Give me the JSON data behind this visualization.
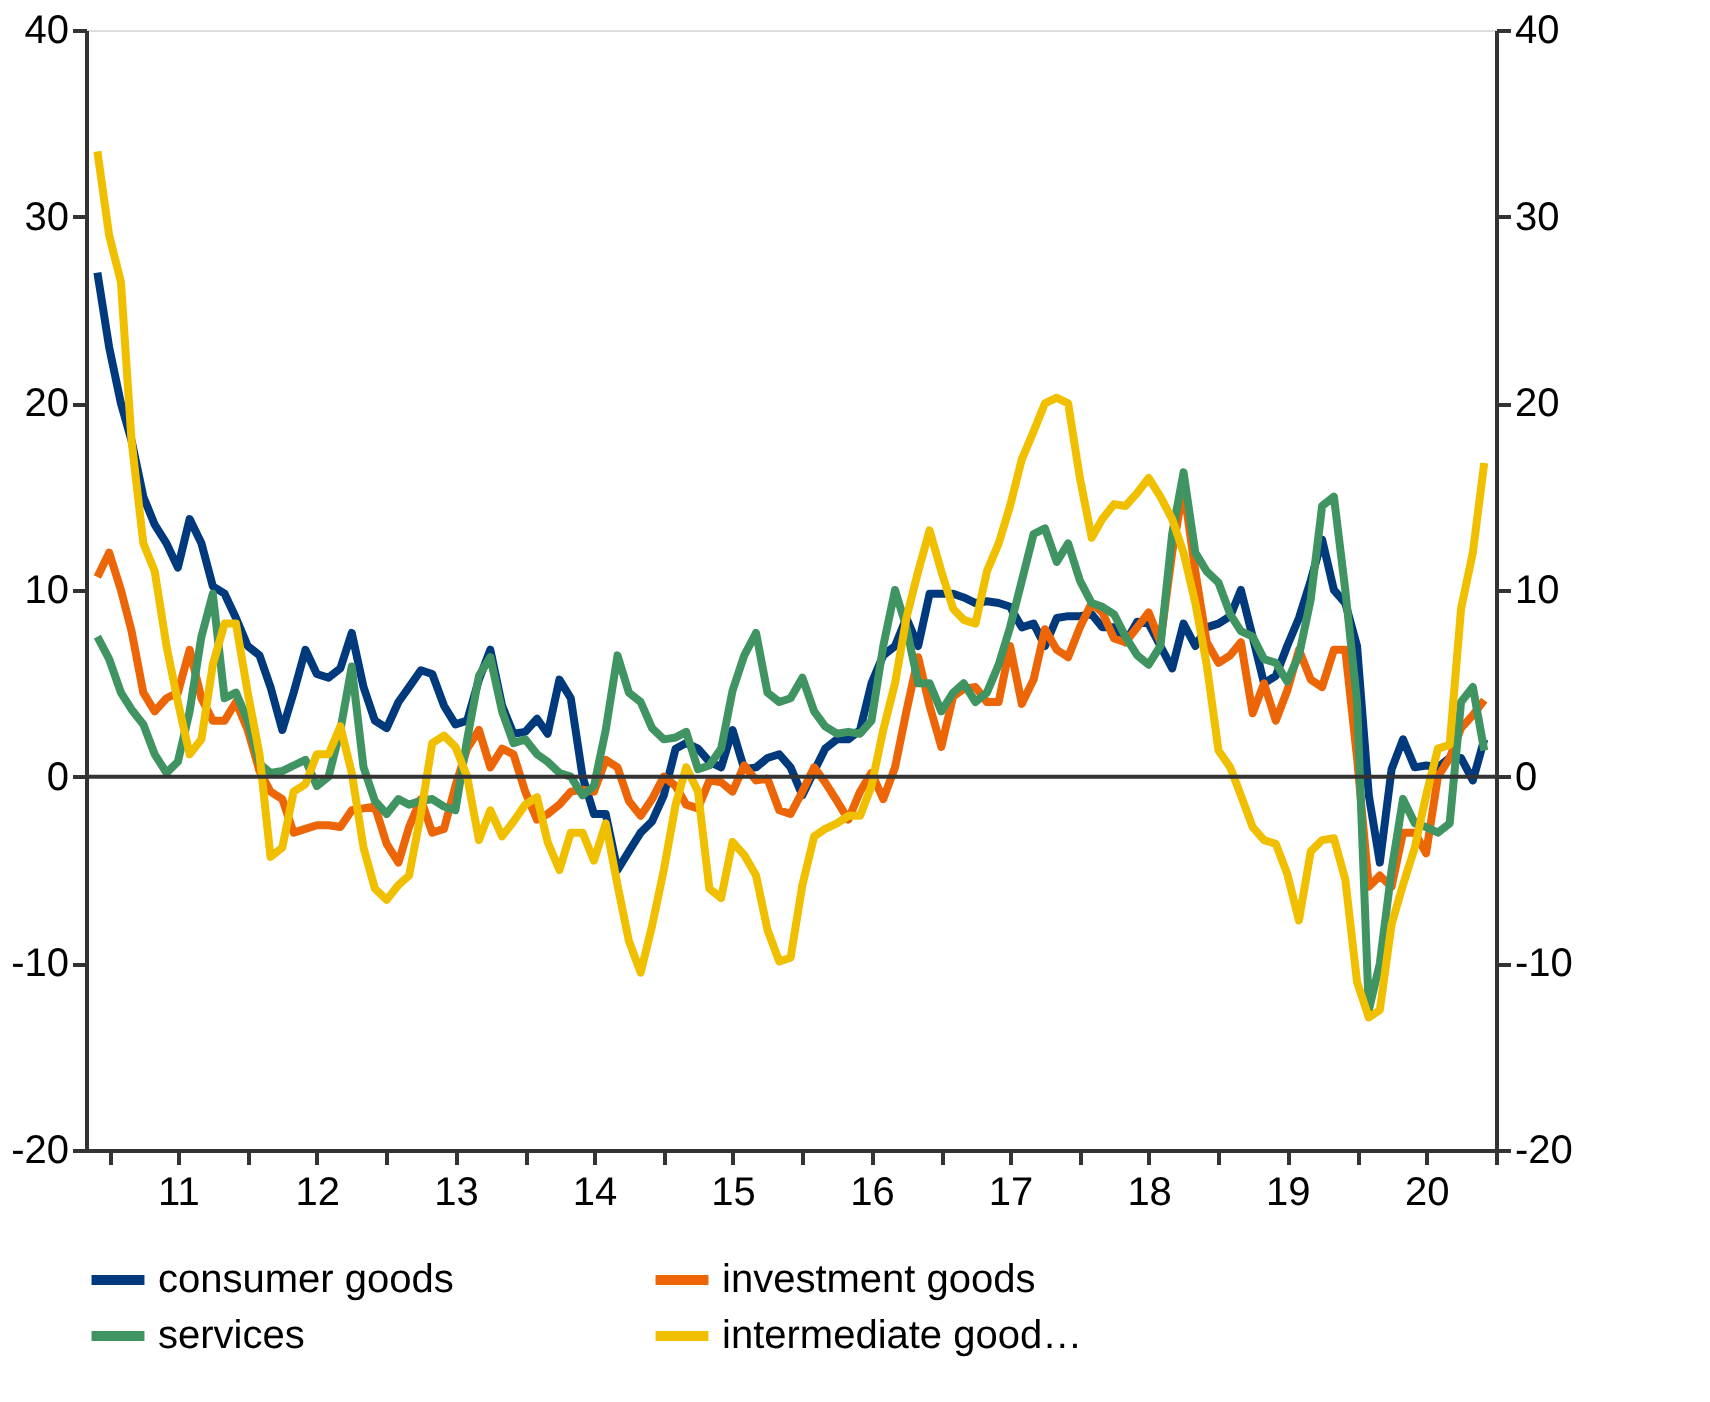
{
  "chart_data": {
    "type": "line",
    "x": [
      "2010-12",
      "2011-01",
      "2011-02",
      "2011-03",
      "2011-04",
      "2011-05",
      "2011-06",
      "2011-07",
      "2011-08",
      "2011-09",
      "2011-10",
      "2011-11",
      "2011-12",
      "2012-01",
      "2012-02",
      "2012-03",
      "2012-04",
      "2012-05",
      "2012-06",
      "2012-07",
      "2012-08",
      "2012-09",
      "2012-10",
      "2012-11",
      "2012-12",
      "2013-01",
      "2013-02",
      "2013-03",
      "2013-04",
      "2013-05",
      "2013-06",
      "2013-07",
      "2013-08",
      "2013-09",
      "2013-10",
      "2013-11",
      "2013-12",
      "2014-01",
      "2014-02",
      "2014-03",
      "2014-04",
      "2014-05",
      "2014-06",
      "2014-07",
      "2014-08",
      "2014-09",
      "2014-10",
      "2014-11",
      "2014-12",
      "2015-01",
      "2015-02",
      "2015-03",
      "2015-04",
      "2015-05",
      "2015-06",
      "2015-07",
      "2015-08",
      "2015-09",
      "2015-10",
      "2015-11",
      "2015-12",
      "2016-01",
      "2016-02",
      "2016-03",
      "2016-04",
      "2016-05",
      "2016-06",
      "2016-07",
      "2016-08",
      "2016-09",
      "2016-10",
      "2016-11",
      "2016-12",
      "2017-01",
      "2017-02",
      "2017-03",
      "2017-04",
      "2017-05",
      "2017-06",
      "2017-07",
      "2017-08",
      "2017-09",
      "2017-10",
      "2017-11",
      "2017-12",
      "2018-01",
      "2018-02",
      "2018-03",
      "2018-04",
      "2018-05",
      "2018-06",
      "2018-07",
      "2018-08",
      "2018-09",
      "2018-10",
      "2018-11",
      "2018-12",
      "2019-01",
      "2019-02",
      "2019-03",
      "2019-04",
      "2019-05",
      "2019-06",
      "2019-07",
      "2019-08",
      "2019-09",
      "2019-10",
      "2019-11",
      "2019-12",
      "2020-01",
      "2020-02",
      "2020-03",
      "2020-04",
      "2020-05",
      "2020-06",
      "2020-07",
      "2020-08",
      "2020-09",
      "2020-10",
      "2020-11",
      "2020-12"
    ],
    "series": [
      {
        "name": "consumer goods",
        "color": "#003a7d",
        "values": [
          27,
          23,
          20,
          18,
          15,
          13.5,
          12.5,
          11.2,
          13.8,
          12.5,
          10.2,
          9.8,
          8.5,
          7,
          6.5,
          4.8,
          2.5,
          4.5,
          6.8,
          5.5,
          5.3,
          5.8,
          7.7,
          4.8,
          3,
          2.6,
          4,
          4.8,
          5.7,
          5.5,
          3.8,
          2.8,
          3,
          5.2,
          6.8,
          3.8,
          2.3,
          2.4,
          3.1,
          2.3,
          5.2,
          4.2,
          0,
          -2,
          -2,
          -5,
          -4,
          -3,
          -2.4,
          -1,
          1.5,
          1.8,
          1.5,
          0.8,
          0.5,
          2.5,
          0.4,
          0.5,
          1,
          1.2,
          0.5,
          -1,
          0.3,
          1.5,
          2,
          2,
          2.5,
          5,
          6.5,
          7,
          8.5,
          7,
          9.8,
          9.8,
          9.8,
          9.6,
          9.3,
          9.4,
          9.3,
          9.1,
          8,
          8.2,
          7,
          8.5,
          8.6,
          8.6,
          8.7,
          8,
          8,
          7.2,
          8.3,
          8.2,
          7,
          5.8,
          8.2,
          7,
          8,
          8.2,
          8.6,
          10,
          7.5,
          5,
          5.4,
          7,
          8.5,
          10.5,
          12.7,
          10,
          9.3,
          7,
          -1,
          -4.6,
          0.4,
          2,
          0.5,
          0.6,
          0.5,
          1,
          1,
          -0.2,
          2
        ]
      },
      {
        "name": "investment goods",
        "color": "#ec6608",
        "values": [
          10.7,
          12,
          10,
          7.8,
          4.5,
          3.5,
          4.2,
          4.5,
          6.8,
          4.2,
          3,
          3,
          4,
          2.5,
          0.3,
          -0.8,
          -1.2,
          -3,
          -2.8,
          -2.6,
          -2.6,
          -2.7,
          -1.8,
          -1.7,
          -1.6,
          -3.6,
          -4.6,
          -2.7,
          -1.2,
          -3,
          -2.8,
          -0.5,
          1.5,
          2.5,
          0.5,
          1.5,
          1.2,
          -0.8,
          -2.3,
          -2,
          -1.5,
          -0.8,
          -0.7,
          -0.8,
          0.9,
          0.5,
          -1.3,
          -2.1,
          -1.2,
          0,
          -0.5,
          -1.5,
          -1.7,
          -0.2,
          -0.3,
          -0.8,
          0.6,
          -0.2,
          -0.1,
          -1.8,
          -2,
          -0.8,
          0.5,
          -0.3,
          -1.3,
          -2.3,
          -0.8,
          0.2,
          -1.2,
          0.5,
          3.5,
          6.4,
          3.8,
          1.6,
          4.3,
          4.7,
          4.8,
          4,
          4,
          7,
          3.9,
          5.2,
          7.9,
          6.8,
          6.4,
          8,
          9.3,
          8.8,
          7.4,
          7.2,
          8,
          8.8,
          7.2,
          12,
          15.5,
          11,
          7.2,
          6.1,
          6.5,
          7.2,
          3.4,
          5,
          3,
          4.6,
          6.8,
          5.2,
          4.8,
          6.8,
          6.8,
          1,
          -5.9,
          -5.3,
          -5.9,
          -3,
          -3,
          -4.1,
          0,
          1,
          2.6,
          3.3,
          4.1
        ]
      },
      {
        "name": "services",
        "color": "#3f9461",
        "values": [
          7.5,
          6.3,
          4.5,
          3.6,
          2.8,
          1.2,
          0.2,
          0.8,
          3.5,
          7.5,
          9.8,
          4.2,
          4.5,
          3,
          0.7,
          0.2,
          0.3,
          0.6,
          0.9,
          -0.5,
          0,
          2.5,
          5.9,
          0.5,
          -1.3,
          -2,
          -1.2,
          -1.5,
          -1.3,
          -1.2,
          -1.6,
          -1.8,
          2,
          5.4,
          6.4,
          3.5,
          1.8,
          2,
          1.2,
          0.8,
          0.2,
          0,
          -1,
          -0.5,
          2.5,
          6.5,
          4.5,
          4,
          2.6,
          2,
          2.1,
          2.4,
          0.4,
          0.6,
          1.5,
          4.6,
          6.5,
          7.7,
          4.5,
          4,
          4.2,
          5.3,
          3.5,
          2.7,
          2.3,
          2.4,
          2.3,
          3,
          7,
          10,
          8,
          5,
          5,
          3.5,
          4.5,
          5,
          4,
          4.5,
          6,
          8,
          10.5,
          13,
          13.3,
          11.5,
          12.5,
          10.5,
          9.3,
          9.1,
          8.7,
          7.5,
          6.5,
          6,
          7,
          13,
          16.3,
          12,
          11,
          10.4,
          8.7,
          7.8,
          7.5,
          6.3,
          6.1,
          5.1,
          6.5,
          9.5,
          14.5,
          15,
          10,
          4,
          -12.5,
          -10,
          -5,
          -1.2,
          -2.5,
          -2.7,
          -3,
          -2.5,
          4,
          4.8,
          1.4
        ]
      },
      {
        "name": "intermediate good…",
        "color": "#f0bf00",
        "values": [
          33.5,
          29,
          26.5,
          18,
          12.5,
          11,
          7,
          4,
          1.2,
          2,
          6,
          8.2,
          8.2,
          4.5,
          1.2,
          -4.3,
          -3.8,
          -0.8,
          -0.4,
          1.2,
          1.2,
          2.7,
          0.2,
          -3.8,
          -6,
          -6.6,
          -5.8,
          -5.3,
          -2,
          1.8,
          2.2,
          1.6,
          0,
          -3.4,
          -1.8,
          -3.2,
          -2.4,
          -1.5,
          -1.1,
          -3.5,
          -5,
          -3,
          -3,
          -4.5,
          -2.5,
          -5.8,
          -8.8,
          -10.5,
          -8,
          -5,
          -1.5,
          0.5,
          -0.8,
          -6,
          -6.5,
          -3.5,
          -4.2,
          -5.3,
          -8.2,
          -9.9,
          -9.7,
          -5.8,
          -3.2,
          -2.8,
          -2.5,
          -2.1,
          -2.1,
          -0.5,
          2.5,
          5,
          8.5,
          11,
          13.2,
          11,
          9,
          8.4,
          8.2,
          11,
          12.5,
          14.5,
          17,
          18.5,
          20,
          20.3,
          20,
          16,
          12.8,
          13.8,
          14.6,
          14.5,
          15.2,
          16,
          15,
          13.8,
          12,
          9.3,
          6,
          1.4,
          0.5,
          -1,
          -2.7,
          -3.4,
          -3.6,
          -5.2,
          -7.7,
          -4,
          -3.4,
          -3.3,
          -5.5,
          -11,
          -12.9,
          -12.5,
          -7.9,
          -5.8,
          -3.8,
          -1,
          1.5,
          1.7,
          9,
          12,
          16.8
        ]
      }
    ],
    "xlim": [
      "2010-11-01",
      "2021-01-01"
    ],
    "xticks": [
      {
        "value": "2011-01-01",
        "label": null
      },
      {
        "value": "2011-07-01",
        "label": "11"
      },
      {
        "value": "2012-01-01",
        "label": null
      },
      {
        "value": "2012-07-01",
        "label": "12"
      },
      {
        "value": "2013-01-01",
        "label": null
      },
      {
        "value": "2013-07-01",
        "label": "13"
      },
      {
        "value": "2014-01-01",
        "label": null
      },
      {
        "value": "2014-07-01",
        "label": "14"
      },
      {
        "value": "2015-01-01",
        "label": null
      },
      {
        "value": "2015-07-01",
        "label": "15"
      },
      {
        "value": "2016-01-01",
        "label": null
      },
      {
        "value": "2016-07-01",
        "label": "16"
      },
      {
        "value": "2017-01-01",
        "label": null
      },
      {
        "value": "2017-07-01",
        "label": "17"
      },
      {
        "value": "2018-01-01",
        "label": null
      },
      {
        "value": "2018-07-01",
        "label": "18"
      },
      {
        "value": "2019-01-01",
        "label": null
      },
      {
        "value": "2019-07-01",
        "label": "19"
      },
      {
        "value": "2020-01-01",
        "label": null
      },
      {
        "value": "2020-07-01",
        "label": "20"
      },
      {
        "value": "2021-01-01",
        "label": null
      }
    ],
    "ylim": [
      -20,
      40
    ],
    "yticks": [
      -20,
      -10,
      0,
      10,
      20,
      30,
      40
    ],
    "y2lim": [
      -20,
      40
    ],
    "y2ticks": [
      -20,
      -10,
      0,
      10,
      20,
      30,
      40
    ],
    "ref_lines": [
      {
        "axis": "y",
        "value": 0,
        "color": "#333333"
      }
    ],
    "legend": "bottom",
    "grid": false,
    "marker": "none",
    "line_style": "solid"
  }
}
